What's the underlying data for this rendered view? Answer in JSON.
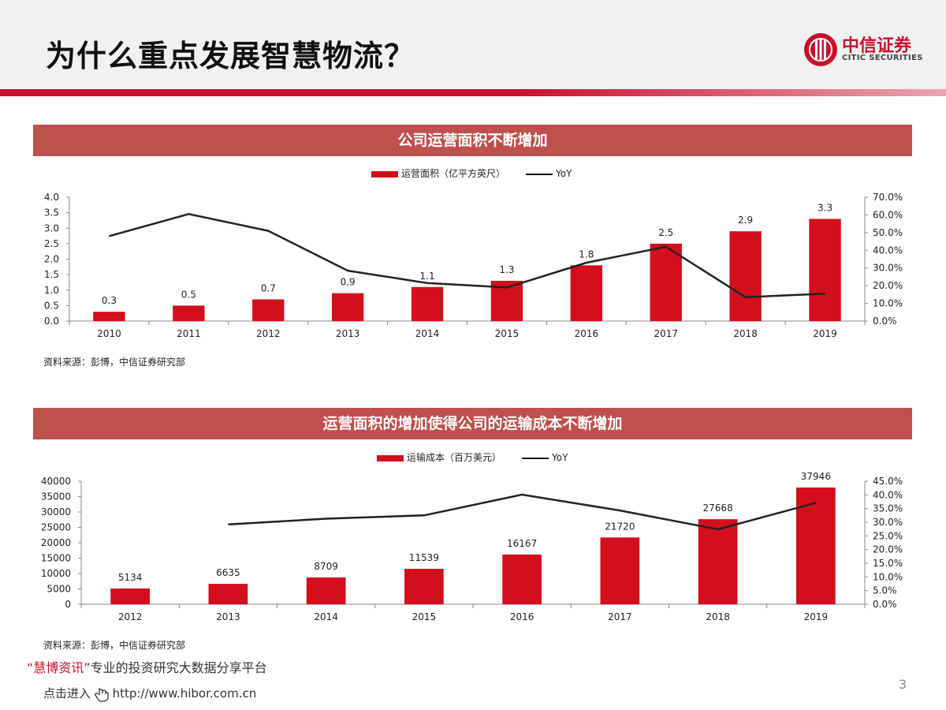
{
  "page": {
    "title": "为什么重点发展智慧物流？",
    "logo_cn": "中信证券",
    "logo_en": "CITIC SECURITIES",
    "page_number": "3",
    "promo_quote_open": "“",
    "promo_highlight": "慧博资讯",
    "promo_quote_close": "”",
    "promo_text": "专业的投资研究大数据分享平台",
    "promo_link_prefix": "点击进入",
    "promo_url": "http://www.hibor.com.cn",
    "colors": {
      "bar": "#d40e1b",
      "banner": "#c0504d",
      "line": "#222222",
      "accent": "#c8102e"
    }
  },
  "sections": [
    {
      "banner": "公司运营面积不断增加",
      "legend_bar": "运营面积（亿平方英尺）",
      "legend_line": "YoY",
      "source": "资料来源：彭博，中信证券研究部"
    },
    {
      "banner": "运营面积的增加使得公司的运输成本不断增加",
      "legend_bar": "运输成本（百万美元）",
      "legend_line": "YoY",
      "source": "资料来源：彭博，中信证券研究部"
    }
  ],
  "chart_data": [
    {
      "type": "bar",
      "categories": [
        "2010",
        "2011",
        "2012",
        "2013",
        "2014",
        "2015",
        "2016",
        "2017",
        "2018",
        "2019"
      ],
      "series": [
        {
          "name": "运营面积（亿平方英尺）",
          "type": "bar",
          "axis": "left",
          "values": [
            0.3,
            0.5,
            0.7,
            0.9,
            1.1,
            1.3,
            1.8,
            2.5,
            2.9,
            3.3
          ],
          "labels": [
            "0.3",
            "0.5",
            "0.7",
            "0.9",
            "1.1",
            "1.3",
            "1.8",
            "2.5",
            "2.9",
            "3.3"
          ]
        },
        {
          "name": "YoY",
          "type": "line",
          "axis": "right",
          "values": [
            0.48,
            0.605,
            0.51,
            0.285,
            0.215,
            0.19,
            0.33,
            0.42,
            0.135,
            0.155
          ]
        }
      ],
      "ylim": [
        0,
        4
      ],
      "yticks": [
        "0.0",
        "0.5",
        "1.0",
        "1.5",
        "2.0",
        "2.5",
        "3.0",
        "3.5",
        "4.0"
      ],
      "y2lim": [
        0,
        0.7
      ],
      "y2ticks": [
        "0.0%",
        "10.0%",
        "20.0%",
        "30.0%",
        "40.0%",
        "50.0%",
        "60.0%",
        "70.0%"
      ],
      "legend_position": "top-center",
      "grid": false
    },
    {
      "type": "bar",
      "categories": [
        "2012",
        "2013",
        "2014",
        "2015",
        "2016",
        "2017",
        "2018",
        "2019"
      ],
      "series": [
        {
          "name": "运输成本（百万美元）",
          "type": "bar",
          "axis": "left",
          "values": [
            5134,
            6635,
            8709,
            11539,
            16167,
            21720,
            27668,
            37946
          ],
          "labels": [
            "5134",
            "6635",
            "8709",
            "11539",
            "16167",
            "21720",
            "27668",
            "37946"
          ]
        },
        {
          "name": "YoY",
          "type": "line",
          "axis": "right",
          "values": [
            null,
            0.292,
            0.313,
            0.325,
            0.401,
            0.343,
            0.274,
            0.371
          ]
        }
      ],
      "ylim": [
        0,
        40000
      ],
      "yticks": [
        "0",
        "5000",
        "10000",
        "15000",
        "20000",
        "25000",
        "30000",
        "35000",
        "40000"
      ],
      "y2lim": [
        0,
        0.45
      ],
      "y2ticks": [
        "0.0%",
        "5.0%",
        "10.0%",
        "15.0%",
        "20.0%",
        "25.0%",
        "30.0%",
        "35.0%",
        "40.0%",
        "45.0%"
      ],
      "legend_position": "top-center",
      "grid": false
    }
  ]
}
